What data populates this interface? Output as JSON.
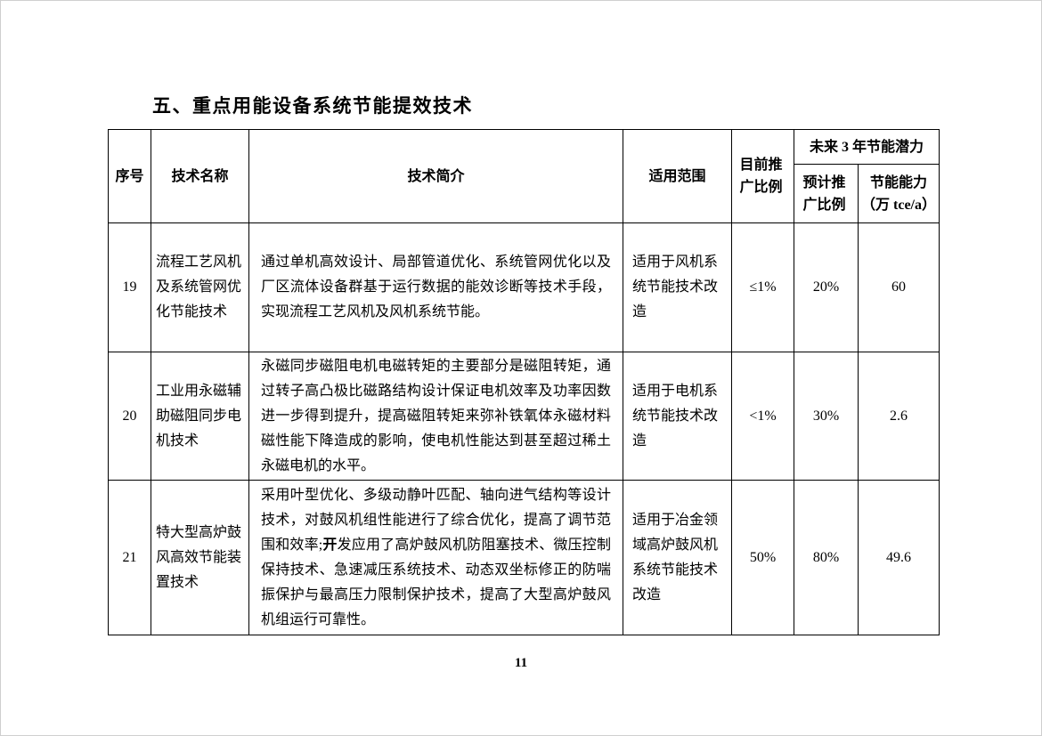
{
  "page": {
    "title": "五、重点用能设备系统节能提效技术",
    "page_number": "11"
  },
  "table": {
    "headers": {
      "seq": "序号",
      "name": "技术名称",
      "intro": "技术简介",
      "scope": "适用范围",
      "current_ratio": "目前推广比例",
      "future_group": "未来 3 年节能潜力",
      "expected_ratio": "预计推广比例",
      "capacity_line1": "节能能力",
      "capacity_line2": "（万 tce/a）"
    },
    "rows": [
      {
        "seq": "19",
        "name": "流程工艺风机及系统管网优化节能技术",
        "intro_segments": [
          {
            "text": "通过单机高效设计、局部管道优化、系统管网优化以及厂区流体设备群基于运行数据的能效诊断等技术手段，实现流程工艺风机及风机系统节能。",
            "bold": false
          }
        ],
        "scope": "适用于风机系统节能技术改造",
        "current_ratio": "≤1%",
        "expected_ratio": "20%",
        "capacity": "60"
      },
      {
        "seq": "20",
        "name": "工业用永磁辅助磁阻同步电机技术",
        "intro_segments": [
          {
            "text": "永磁同步磁阻电机电磁转矩的主要部分是磁阻转矩，通过转子高凸极比磁路结构设计保证电机效率及功率因数进一步得到提升，提高磁阻转矩来弥补铁氧体永磁材料磁性能下降造成的影响，使电机性能达到甚至超过稀土永磁电机的水平。",
            "bold": false
          }
        ],
        "scope": "适用于电机系统节能技术改造",
        "current_ratio": "<1%",
        "expected_ratio": "30%",
        "capacity": "2.6"
      },
      {
        "seq": "21",
        "name": "特大型高炉鼓风高效节能装置技术",
        "intro_segments": [
          {
            "text": "采用叶型优化、多级动静叶匹配、轴向进气结构等设计技术，对鼓风机组性能进行了综合优化，提高了调节范围和效率;",
            "bold": false
          },
          {
            "text": "开",
            "bold": true
          },
          {
            "text": "发应用了高炉鼓风机防阻塞技术、微压控制保持技术、急速减压系统技术、动态双坐标修正的防喘振保护与最高压力限制保护技术，提高了大型高炉鼓风机组运行可靠性。",
            "bold": false
          }
        ],
        "scope": "适用于冶金领域高炉鼓风机系统节能技术改造",
        "current_ratio": "50%",
        "expected_ratio": "80%",
        "capacity": "49.6"
      }
    ]
  }
}
